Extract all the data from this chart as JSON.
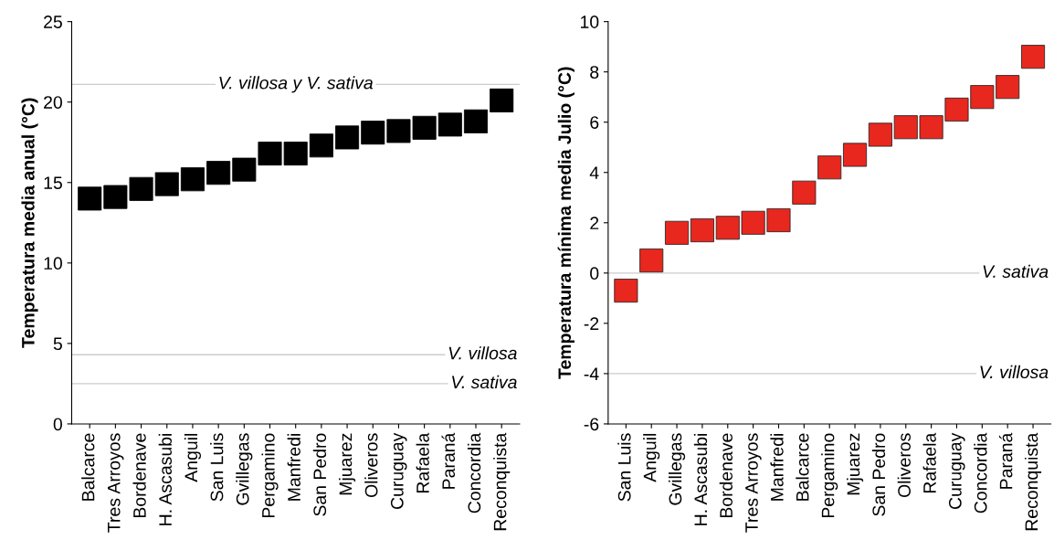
{
  "chart_data": [
    {
      "type": "scatter",
      "ylabel": "Temperatura media anual (°C)",
      "categories": [
        "Balcarce",
        "Tres Arroyos",
        "Bordenave",
        "H. Ascasubi",
        "Anguil",
        "San Luis",
        "Gvillegas",
        "Pergamino",
        "Manfredi",
        "San Pedro",
        "Mjuarez",
        "Oliveros",
        "Curuguay",
        "Rafaela",
        "Paraná",
        "Concordia",
        "Reconquista"
      ],
      "series": [
        {
          "color": "#000000",
          "values": [
            14.0,
            14.1,
            14.6,
            14.9,
            15.2,
            15.6,
            15.8,
            16.8,
            16.8,
            17.3,
            17.8,
            18.1,
            18.2,
            18.4,
            18.6,
            18.8,
            20.1
          ]
        }
      ],
      "marker": "square",
      "grid": false,
      "legend": false,
      "ylim": [
        0,
        25
      ],
      "yticks": [
        0,
        5,
        10,
        15,
        20,
        25
      ],
      "ref_lines": [
        {
          "axis": "y",
          "value": 21.1,
          "label": "V. villosa y V. sativa",
          "color": "#cccccc"
        },
        {
          "axis": "y",
          "value": 4.3,
          "label": "V. villosa",
          "color": "#cccccc"
        },
        {
          "axis": "y",
          "value": 2.5,
          "label": "V. sativa",
          "color": "#cccccc"
        }
      ]
    },
    {
      "type": "scatter",
      "ylabel": "Temperatura mínima media Julio (°C)",
      "categories": [
        "San Luis",
        "Anguil",
        "Gvillegas",
        "H. Ascasubi",
        "Bordenave",
        "Tres Arroyos",
        "Manfredi",
        "Balcarce",
        "Pergamino",
        "Mjuarez",
        "San Pedro",
        "Oliveros",
        "Rafaela",
        "Curuguay",
        "Concordia",
        "Paraná",
        "Reconquista"
      ],
      "series": [
        {
          "color": "#e8271e",
          "values": [
            -0.7,
            0.5,
            1.6,
            1.7,
            1.8,
            2.0,
            2.1,
            3.2,
            4.2,
            4.7,
            5.5,
            5.8,
            5.8,
            6.5,
            7.0,
            7.4,
            8.6
          ]
        }
      ],
      "marker": "square",
      "grid": false,
      "legend": false,
      "ylim": [
        -6,
        10
      ],
      "yticks": [
        -6,
        -4,
        -2,
        0,
        2,
        4,
        6,
        8,
        10
      ],
      "ref_lines": [
        {
          "axis": "y",
          "value": 0,
          "label": "V. sativa",
          "color": "#cccccc"
        },
        {
          "axis": "y",
          "value": -4,
          "label": "V. villosa",
          "color": "#cccccc"
        }
      ]
    }
  ]
}
